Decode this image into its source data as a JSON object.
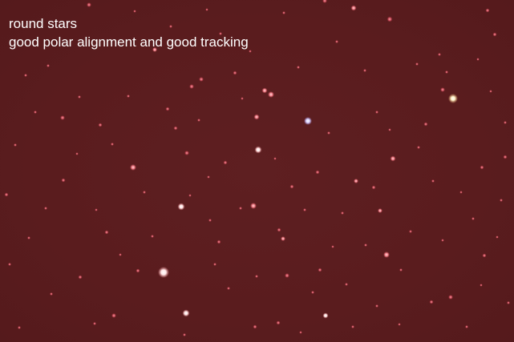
{
  "caption": {
    "line1": "round stars",
    "line2": "good polar alignment and good tracking"
  },
  "colors": {
    "sky_background": "#5a1c1e",
    "caption_text": "#ffffff"
  }
}
